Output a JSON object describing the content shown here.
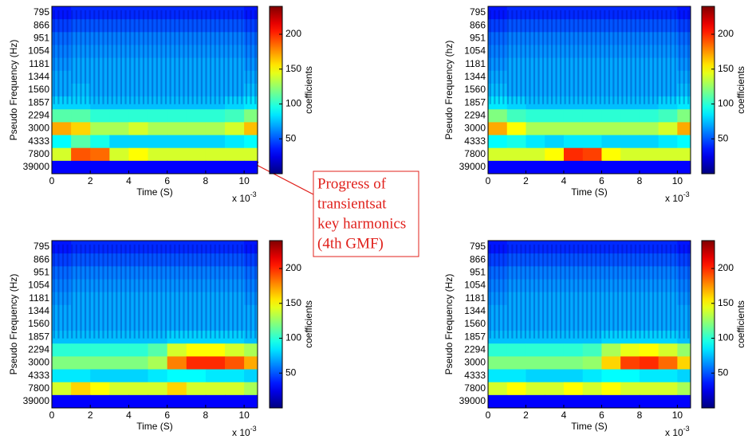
{
  "chart_data": [
    {
      "type": "heatmap",
      "x_label": "Time (S)",
      "y_label": "Pseudo Frequency (Hz)",
      "colorbar_label": "coefficients",
      "x_scale": {
        "base": "x 10",
        "exponent": "-3"
      },
      "xlim": [
        0,
        10.7
      ],
      "xticks": [
        0,
        2,
        4,
        6,
        8,
        10
      ],
      "clim": [
        0,
        240
      ],
      "cticks": [
        50,
        100,
        150,
        200
      ],
      "y_categories": [
        "795",
        "866",
        "951",
        "1054",
        "1181",
        "1344",
        "1560",
        "1857",
        "2294",
        "3000",
        "4333",
        "7800",
        "39000"
      ],
      "x": [
        0.5,
        1.5,
        2.5,
        3.5,
        4.5,
        5.5,
        6.5,
        7.5,
        8.5,
        9.5,
        10.5
      ],
      "z": [
        [
          35,
          40,
          40,
          40,
          40,
          40,
          40,
          40,
          40,
          40,
          35
        ],
        [
          45,
          50,
          50,
          50,
          50,
          50,
          50,
          50,
          50,
          50,
          45
        ],
        [
          55,
          60,
          60,
          60,
          60,
          60,
          60,
          60,
          60,
          60,
          55
        ],
        [
          60,
          65,
          65,
          65,
          65,
          65,
          65,
          65,
          65,
          65,
          60
        ],
        [
          65,
          70,
          70,
          70,
          70,
          70,
          70,
          70,
          70,
          70,
          65
        ],
        [
          70,
          70,
          70,
          70,
          70,
          70,
          70,
          70,
          70,
          70,
          70
        ],
        [
          70,
          75,
          70,
          70,
          70,
          70,
          70,
          70,
          70,
          70,
          75
        ],
        [
          80,
          80,
          75,
          75,
          75,
          75,
          75,
          75,
          75,
          80,
          85
        ],
        [
          110,
          110,
          100,
          100,
          100,
          100,
          100,
          100,
          100,
          105,
          120
        ],
        [
          170,
          160,
          130,
          130,
          140,
          130,
          130,
          130,
          130,
          140,
          165
        ],
        [
          90,
          110,
          95,
          80,
          80,
          80,
          80,
          80,
          80,
          85,
          90
        ],
        [
          140,
          190,
          185,
          140,
          150,
          140,
          140,
          140,
          140,
          140,
          140
        ],
        [
          30,
          30,
          30,
          30,
          30,
          30,
          30,
          30,
          30,
          30,
          30
        ]
      ]
    },
    {
      "type": "heatmap",
      "x_label": "Time (S)",
      "y_label": "Pseudo Frequency (hz)",
      "colorbar_label": "coefficients",
      "x_scale": {
        "base": "x 10",
        "exponent": "-3"
      },
      "xlim": [
        0,
        10.7
      ],
      "xticks": [
        0,
        2,
        4,
        6,
        8,
        10
      ],
      "clim": [
        0,
        240
      ],
      "cticks": [
        50,
        100,
        150,
        200
      ],
      "y_categories": [
        "795",
        "866",
        "951",
        "1054",
        "1181",
        "1344",
        "1560",
        "1857",
        "2294",
        "3000",
        "4333",
        "7800",
        "39000"
      ],
      "x": [
        0.5,
        1.5,
        2.5,
        3.5,
        4.5,
        5.5,
        6.5,
        7.5,
        8.5,
        9.5,
        10.5
      ],
      "z": [
        [
          35,
          40,
          40,
          40,
          40,
          40,
          40,
          40,
          40,
          40,
          35
        ],
        [
          45,
          50,
          50,
          50,
          50,
          50,
          50,
          50,
          50,
          50,
          45
        ],
        [
          55,
          60,
          60,
          60,
          60,
          60,
          60,
          60,
          60,
          60,
          55
        ],
        [
          60,
          65,
          65,
          65,
          65,
          65,
          65,
          65,
          65,
          65,
          60
        ],
        [
          65,
          70,
          70,
          70,
          70,
          70,
          70,
          70,
          70,
          70,
          65
        ],
        [
          70,
          70,
          70,
          70,
          70,
          70,
          70,
          70,
          70,
          70,
          70
        ],
        [
          75,
          70,
          70,
          70,
          70,
          70,
          70,
          70,
          70,
          70,
          75
        ],
        [
          85,
          80,
          75,
          75,
          75,
          75,
          75,
          75,
          75,
          80,
          85
        ],
        [
          120,
          105,
          100,
          100,
          100,
          100,
          100,
          100,
          100,
          105,
          120
        ],
        [
          170,
          150,
          130,
          130,
          130,
          130,
          130,
          130,
          130,
          140,
          170
        ],
        [
          90,
          95,
          85,
          80,
          85,
          85,
          80,
          80,
          80,
          85,
          90
        ],
        [
          140,
          140,
          140,
          150,
          200,
          195,
          150,
          140,
          140,
          140,
          140
        ],
        [
          30,
          30,
          30,
          30,
          30,
          30,
          30,
          30,
          30,
          30,
          30
        ]
      ]
    },
    {
      "type": "heatmap",
      "x_label": "Time (S)",
      "y_label": "Pseudo Frequency (Hz)",
      "colorbar_label": "coefficients",
      "x_scale": {
        "base": "x 10",
        "exponent": "-3"
      },
      "xlim": [
        0,
        10.7
      ],
      "xticks": [
        0,
        2,
        4,
        6,
        8,
        10
      ],
      "clim": [
        0,
        240
      ],
      "cticks": [
        50,
        100,
        150,
        200
      ],
      "y_categories": [
        "795",
        "866",
        "951",
        "1054",
        "1181",
        "1344",
        "1560",
        "1857",
        "2294",
        "3000",
        "4333",
        "7800",
        "39000"
      ],
      "x": [
        0.5,
        1.5,
        2.5,
        3.5,
        4.5,
        5.5,
        6.5,
        7.5,
        8.5,
        9.5,
        10.5
      ],
      "z": [
        [
          35,
          40,
          40,
          40,
          40,
          40,
          40,
          40,
          40,
          40,
          35
        ],
        [
          45,
          50,
          50,
          50,
          50,
          50,
          50,
          50,
          50,
          50,
          45
        ],
        [
          55,
          60,
          60,
          60,
          60,
          60,
          60,
          60,
          60,
          60,
          55
        ],
        [
          60,
          65,
          65,
          65,
          65,
          65,
          65,
          65,
          65,
          65,
          60
        ],
        [
          65,
          70,
          70,
          70,
          70,
          70,
          70,
          70,
          70,
          70,
          65
        ],
        [
          70,
          70,
          70,
          70,
          70,
          70,
          70,
          70,
          70,
          70,
          70
        ],
        [
          70,
          70,
          70,
          70,
          70,
          70,
          70,
          70,
          70,
          70,
          70
        ],
        [
          75,
          75,
          75,
          75,
          75,
          75,
          80,
          80,
          80,
          80,
          75
        ],
        [
          100,
          100,
          100,
          100,
          100,
          110,
          140,
          150,
          150,
          140,
          130
        ],
        [
          120,
          120,
          120,
          120,
          120,
          130,
          180,
          200,
          200,
          190,
          170
        ],
        [
          85,
          85,
          80,
          80,
          80,
          85,
          90,
          90,
          85,
          85,
          80
        ],
        [
          140,
          160,
          150,
          140,
          140,
          140,
          160,
          140,
          140,
          140,
          130
        ],
        [
          30,
          30,
          30,
          30,
          30,
          30,
          30,
          30,
          30,
          30,
          30
        ]
      ]
    },
    {
      "type": "heatmap",
      "x_label": "Time (S)",
      "y_label": "Pseudo Frequency (Hz)",
      "colorbar_label": "coefficients",
      "x_scale": {
        "base": "x 10",
        "exponent": "-3"
      },
      "xlim": [
        0,
        10.7
      ],
      "xticks": [
        0,
        2,
        4,
        6,
        8,
        10
      ],
      "clim": [
        0,
        240
      ],
      "cticks": [
        50,
        100,
        150,
        200
      ],
      "y_categories": [
        "795",
        "866",
        "951",
        "1054",
        "1181",
        "1344",
        "1560",
        "1857",
        "2294",
        "3000",
        "4333",
        "7800",
        "39000"
      ],
      "x": [
        0.5,
        1.5,
        2.5,
        3.5,
        4.5,
        5.5,
        6.5,
        7.5,
        8.5,
        9.5,
        10.5
      ],
      "z": [
        [
          35,
          40,
          40,
          40,
          40,
          40,
          40,
          40,
          40,
          40,
          35
        ],
        [
          45,
          50,
          50,
          50,
          50,
          50,
          50,
          50,
          50,
          50,
          45
        ],
        [
          55,
          60,
          60,
          60,
          60,
          60,
          60,
          60,
          60,
          60,
          55
        ],
        [
          60,
          65,
          65,
          65,
          65,
          65,
          65,
          65,
          65,
          65,
          60
        ],
        [
          65,
          70,
          70,
          70,
          70,
          70,
          70,
          70,
          70,
          70,
          65
        ],
        [
          70,
          70,
          70,
          70,
          70,
          70,
          70,
          70,
          70,
          70,
          70
        ],
        [
          70,
          70,
          70,
          70,
          70,
          70,
          70,
          70,
          70,
          70,
          70
        ],
        [
          75,
          75,
          75,
          75,
          75,
          75,
          80,
          80,
          80,
          80,
          75
        ],
        [
          100,
          100,
          100,
          100,
          100,
          105,
          130,
          145,
          150,
          140,
          125
        ],
        [
          120,
          120,
          120,
          120,
          120,
          125,
          160,
          195,
          200,
          185,
          160
        ],
        [
          85,
          85,
          80,
          80,
          80,
          85,
          90,
          90,
          85,
          85,
          80
        ],
        [
          140,
          150,
          140,
          140,
          150,
          140,
          150,
          140,
          140,
          140,
          130
        ],
        [
          30,
          30,
          30,
          30,
          30,
          30,
          30,
          30,
          30,
          30,
          30
        ]
      ]
    }
  ],
  "annotation": {
    "lines": [
      "Progress of",
      "transientsat",
      "key harmonics",
      "(4th GMF)"
    ]
  }
}
